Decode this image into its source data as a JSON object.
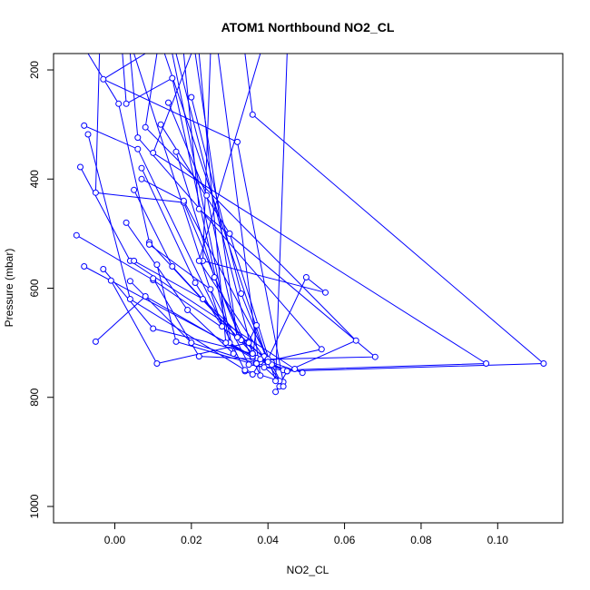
{
  "chart_data": {
    "type": "line",
    "title": "ATOM1 Northbound NO2_CL",
    "xlabel": "NO2_CL",
    "ylabel": "Pressure (mbar)",
    "xlim": [
      -0.016,
      0.117
    ],
    "ylim": [
      1030,
      170
    ],
    "y_reversed": true,
    "x_ticks": [
      0.0,
      0.02,
      0.04,
      0.06,
      0.08,
      0.1
    ],
    "x_tick_labels": [
      "0.00",
      "0.02",
      "0.04",
      "0.06",
      "0.08",
      "0.10"
    ],
    "y_ticks": [
      200,
      400,
      600,
      800,
      1000
    ],
    "y_tick_labels": [
      "200",
      "400",
      "600",
      "800",
      "1000"
    ],
    "grid": false,
    "series_color": "#0000ff",
    "marker": "open-circle",
    "series": [
      {
        "x": [
          -0.008,
          0.04,
          0.045,
          0.042,
          0.043,
          0.044,
          0.032,
          -0.003,
          0.008
        ],
        "y": [
          560,
          740,
          752,
          790,
          780,
          772,
          332,
          217,
          170
        ]
      },
      {
        "x": [
          -0.01,
          0.01,
          0.039,
          0.038,
          0.036,
          0.034,
          0.006,
          -0.008
        ],
        "y": [
          503,
          585,
          725,
          735,
          758,
          752,
          345,
          302
        ]
      },
      {
        "x": [
          -0.009,
          0.004,
          0.047,
          0.049,
          0.041,
          0.037,
          0.009,
          0.001,
          -0.007
        ],
        "y": [
          378,
          550,
          748,
          755,
          736,
          728,
          516,
          262,
          170
        ]
      },
      {
        "x": [
          -0.005,
          0.008,
          0.036,
          0.037,
          0.035,
          0.033,
          0.018,
          -0.005,
          -0.004
        ],
        "y": [
          698,
          615,
          728,
          668,
          698,
          695,
          443,
          425,
          170
        ]
      },
      {
        "x": [
          -0.007,
          0.004,
          0.034,
          0.043,
          0.036,
          0.03,
          0.015,
          0.003,
          0.002
        ],
        "y": [
          318,
          620,
          750,
          770,
          725,
          700,
          215,
          262,
          170
        ]
      },
      {
        "x": [
          -0.001,
          0.011,
          0.035,
          0.037,
          0.054,
          0.006,
          0.004
        ],
        "y": [
          586,
          738,
          700,
          738,
          712,
          324,
          170
        ]
      },
      {
        "x": [
          -0.003,
          0.01,
          0.036,
          0.045,
          0.063,
          0.008,
          0.011
        ],
        "y": [
          565,
          674,
          720,
          752,
          696,
          305,
          170
        ]
      },
      {
        "x": [
          0.004,
          0.02,
          0.037,
          0.04,
          0.068,
          0.022,
          0.018
        ],
        "y": [
          587,
          700,
          738,
          730,
          726,
          455,
          170
        ]
      },
      {
        "x": [
          0.01,
          0.022,
          0.038,
          0.044,
          0.097,
          0.01,
          0.02
        ],
        "y": [
          582,
          725,
          730,
          750,
          738,
          352,
          170
        ]
      },
      {
        "x": [
          0.011,
          0.016,
          0.039,
          0.05,
          0.055,
          0.023,
          0.025
        ],
        "y": [
          557,
          698,
          745,
          580,
          608,
          550,
          170
        ]
      },
      {
        "x": [
          0.009,
          0.025,
          0.035,
          0.045,
          0.112,
          0.036,
          0.034
        ],
        "y": [
          520,
          602,
          740,
          752,
          738,
          282,
          170
        ]
      },
      {
        "x": [
          0.005,
          0.023,
          0.04,
          0.041,
          0.029,
          0.022,
          0.033
        ],
        "y": [
          550,
          620,
          735,
          740,
          700,
          170,
          170
        ]
      },
      {
        "x": [
          0.007,
          0.018,
          0.044,
          0.022,
          0.038
        ],
        "y": [
          400,
          440,
          780,
          550,
          170
        ]
      },
      {
        "x": [
          0.012,
          0.03,
          0.042,
          0.045
        ],
        "y": [
          300,
          500,
          770,
          170
        ]
      },
      {
        "x": [
          0.016,
          0.026,
          0.038,
          0.027
        ],
        "y": [
          350,
          580,
          760,
          170
        ]
      },
      {
        "x": [
          0.02,
          0.033,
          0.04,
          0.013
        ],
        "y": [
          250,
          610,
          735,
          170
        ]
      },
      {
        "x": [
          0.005,
          0.015,
          0.036,
          0.016
        ],
        "y": [
          420,
          560,
          720,
          170
        ]
      },
      {
        "x": [
          0.003,
          0.019,
          0.031,
          0.015
        ],
        "y": [
          480,
          640,
          720,
          170
        ]
      },
      {
        "x": [
          0.014,
          0.024,
          0.032,
          0.021
        ],
        "y": [
          260,
          430,
          690,
          170
        ]
      },
      {
        "x": [
          0.007,
          0.021,
          0.028,
          0.005
        ],
        "y": [
          380,
          590,
          670,
          170
        ]
      }
    ]
  }
}
